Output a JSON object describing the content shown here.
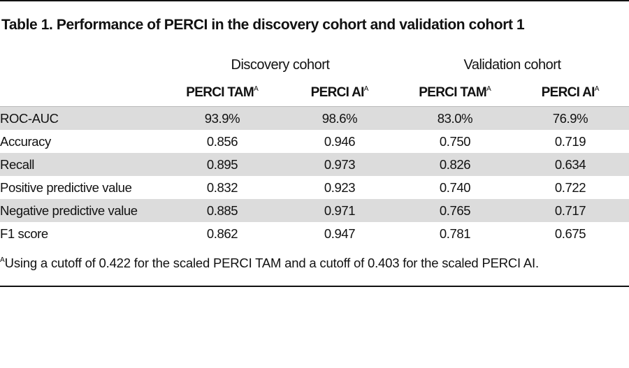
{
  "title": "Table 1. Performance of PERCI in the discovery cohort and validation cohort 1",
  "table": {
    "groups": [
      "Discovery cohort",
      "Validation cohort"
    ],
    "columns": [
      {
        "label": "PERCI TAM",
        "sup": "A"
      },
      {
        "label": "PERCI AI",
        "sup": "A"
      },
      {
        "label": "PERCI TAM",
        "sup": "A"
      },
      {
        "label": "PERCI AI",
        "sup": "A"
      }
    ],
    "rows": [
      [
        "ROC-AUC",
        "93.9%",
        "98.6%",
        "83.0%",
        "76.9%"
      ],
      [
        "Accuracy",
        "0.856",
        "0.946",
        "0.750",
        "0.719"
      ],
      [
        "Recall",
        "0.895",
        "0.973",
        "0.826",
        "0.634"
      ],
      [
        "Positive predictive value",
        "0.832",
        "0.923",
        "0.740",
        "0.722"
      ],
      [
        "Negative predictive value",
        "0.885",
        "0.971",
        "0.765",
        "0.717"
      ],
      [
        "F1 score",
        "0.862",
        "0.947",
        "0.781",
        "0.675"
      ]
    ]
  },
  "footnote": {
    "sup": "A",
    "text": "Using a cutoff of 0.422 for the scaled PERCI TAM and a cutoff of 0.403 for the scaled PERCI AI."
  }
}
